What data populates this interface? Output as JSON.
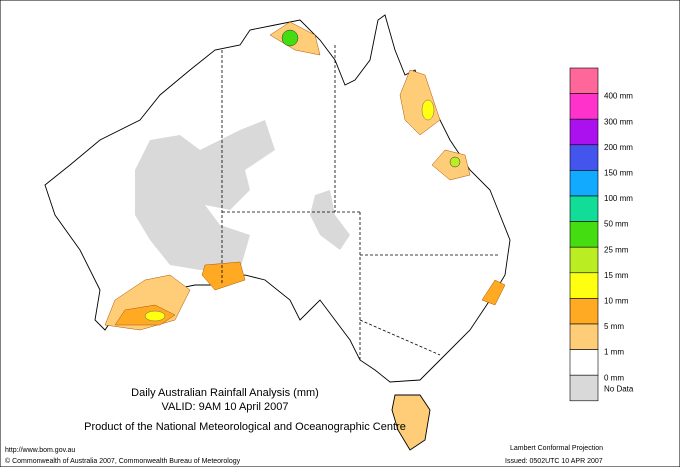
{
  "header": {
    "title": "Daily Australian Rainfall Analysis (mm)",
    "valid": "VALID: 9AM 10 April 2007",
    "product": "Product of the National Meteorological and Oceanographic Centre"
  },
  "legend": {
    "colors": [
      "#ff6699",
      "#ff33cc",
      "#aa11ee",
      "#4455ee",
      "#11aaff",
      "#11dd99",
      "#44dd11",
      "#bbee22",
      "#ffff11",
      "#ffaa22",
      "#ffcc77",
      "#ffffff",
      "#d9d9d9"
    ],
    "labels": [
      "400 mm",
      "300 mm",
      "200 mm",
      "150 mm",
      "100 mm",
      "50 mm",
      "25 mm",
      "15 mm",
      "10 mm",
      "5 mm",
      "1 mm",
      "0 mm",
      "No Data"
    ]
  },
  "footer": {
    "url": "http://www.bom.gov.au",
    "copyright": "© Commonwealth of Australia 2007, Commonwealth Bureau of Meteorology",
    "projection": "Lambert Conformal Projection",
    "issued": "Issued: 0502UTC 10 APR 2007"
  }
}
